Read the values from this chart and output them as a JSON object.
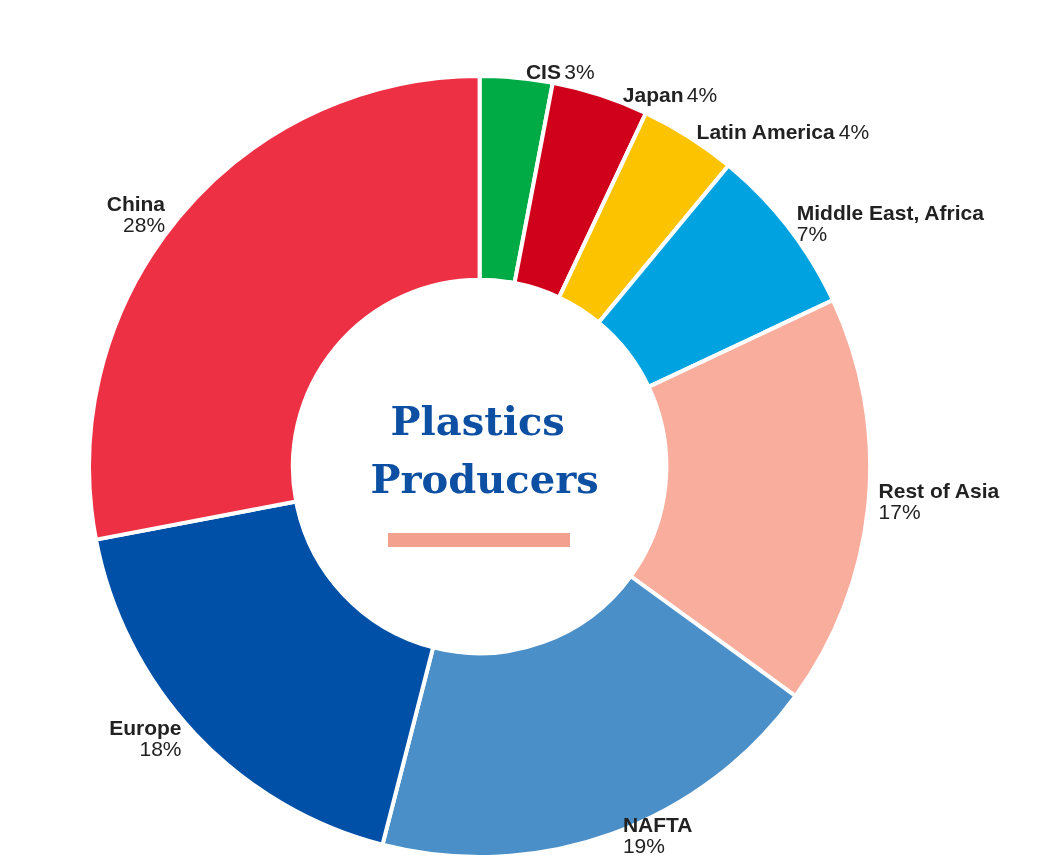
{
  "chart_data": {
    "type": "donut",
    "title": "Plastics Producers",
    "categories": [
      "CIS",
      "Japan",
      "Latin America",
      "Middle East, Africa",
      "Rest of Asia",
      "NAFTA",
      "Europe",
      "China"
    ],
    "values": [
      3,
      4,
      4,
      7,
      17,
      19,
      18,
      28
    ],
    "value_labels": [
      "3%",
      "4%",
      "4%",
      "7%",
      "17%",
      "19%",
      "18%",
      "28%"
    ],
    "colors": [
      "#00aa44",
      "#d0021b",
      "#fcc300",
      "#00a3e0",
      "#f8ad9d",
      "#4a8fc8",
      "#0050a8",
      "#ee3044"
    ],
    "legend": false
  }
}
